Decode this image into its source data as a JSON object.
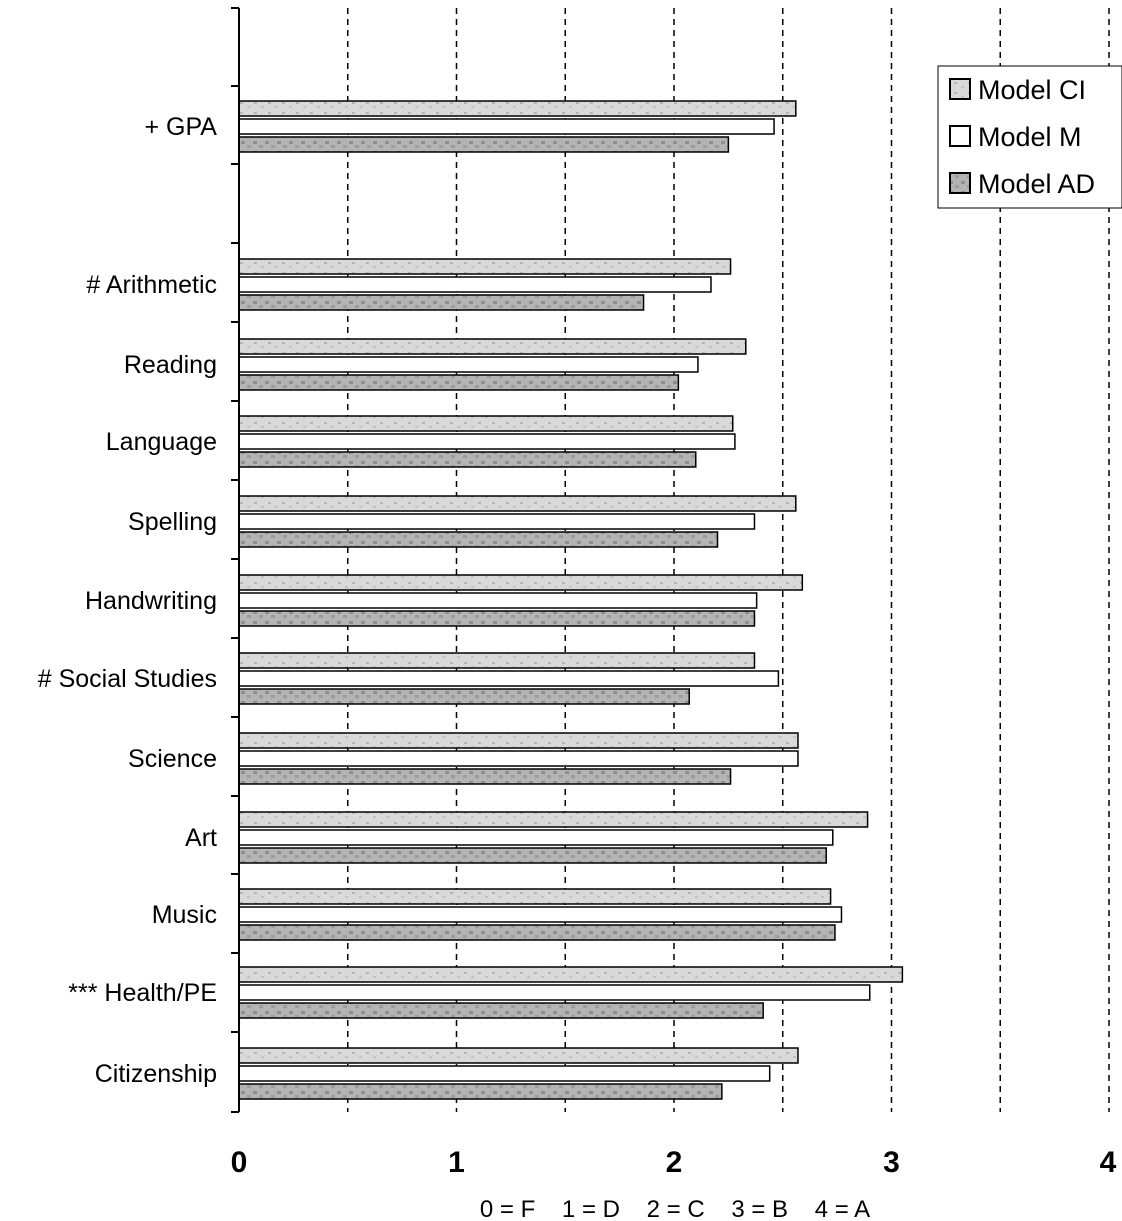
{
  "chart_data": {
    "type": "bar",
    "orientation": "horizontal",
    "categories": [
      "+ GPA",
      "# Arithmetic",
      "Reading",
      "Language",
      "Spelling",
      "Handwriting",
      "# Social Studies",
      "Science",
      "Art",
      "Music",
      "*** Health/PE",
      "Citizenship"
    ],
    "series": [
      {
        "name": "Model CI",
        "color": "#d0d0d0",
        "values": [
          2.56,
          2.26,
          2.33,
          2.27,
          2.56,
          2.59,
          2.37,
          2.57,
          2.89,
          2.72,
          3.05,
          2.57
        ]
      },
      {
        "name": "Model M",
        "color": "#ffffff",
        "values": [
          2.46,
          2.17,
          2.11,
          2.28,
          2.37,
          2.38,
          2.48,
          2.57,
          2.73,
          2.77,
          2.9,
          2.44
        ]
      },
      {
        "name": "Model AD",
        "color": "#a8a8a8",
        "values": [
          2.25,
          1.86,
          2.02,
          2.1,
          2.2,
          2.37,
          2.07,
          2.26,
          2.7,
          2.74,
          2.41,
          2.22
        ]
      }
    ],
    "xlim": [
      0,
      4
    ],
    "x_ticks": [
      "0",
      "1",
      "2",
      "3",
      "4"
    ],
    "grid": "dashed vertical at every 0.5",
    "legend": {
      "placement": "top-right",
      "entries": [
        "Model CI",
        "Model M",
        "Model AD"
      ]
    },
    "xlabel": "0 = F    1 = D    2 = C    3 = B    4 = A",
    "title": "",
    "ylabel": ""
  }
}
